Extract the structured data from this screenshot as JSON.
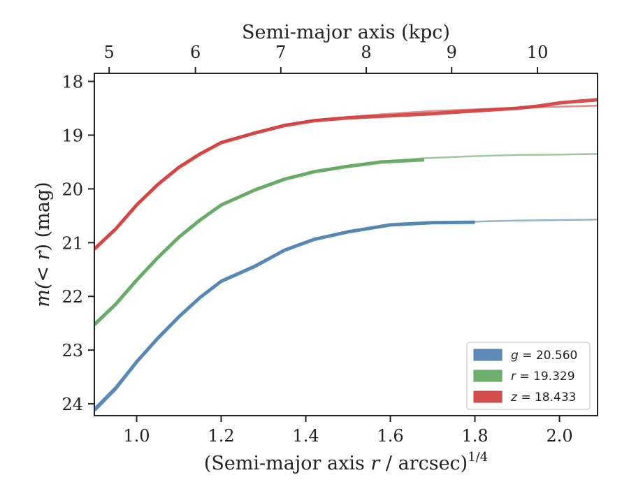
{
  "chart_data": {
    "type": "line",
    "xlabel_prefix": "(Semi-major axis ",
    "xlabel_var": "r",
    "xlabel_suffix": " / arcsec)",
    "xlabel_exp": "1/4",
    "ylabel_prefix": "m(",
    "ylabel_var": "< r",
    "ylabel_suffix": ") (mag)",
    "top_xlabel": "Semi-major axis (kpc)",
    "xlim": [
      0.9,
      2.09
    ],
    "ylim": [
      24.22,
      17.85
    ],
    "y_inverted": true,
    "xticks": [
      1.0,
      1.2,
      1.4,
      1.6,
      1.8,
      2.0
    ],
    "xtick_labels": [
      "1.0",
      "1.2",
      "1.4",
      "1.6",
      "1.8",
      "2.0"
    ],
    "yticks": [
      18,
      19,
      20,
      21,
      22,
      23,
      24
    ],
    "ytick_labels": [
      "18",
      "19",
      "20",
      "21",
      "22",
      "23",
      "24"
    ],
    "top_ticks": [
      {
        "label": "5",
        "x": 0.935
      },
      {
        "label": "6",
        "x": 1.139
      },
      {
        "label": "7",
        "x": 1.341
      },
      {
        "label": "8",
        "x": 1.543
      },
      {
        "label": "9",
        "x": 1.745
      },
      {
        "label": "10",
        "x": 1.948
      }
    ],
    "grid": false,
    "legend_position": "bottom-right",
    "series": [
      {
        "name": "g = 20.560",
        "legend_var": "g",
        "legend_value": "= 20.560",
        "color": "#4c7eae",
        "data": [
          [
            0.9,
            24.12
          ],
          [
            0.95,
            23.72
          ],
          [
            1.0,
            23.22
          ],
          [
            1.05,
            22.78
          ],
          [
            1.1,
            22.38
          ],
          [
            1.15,
            22.02
          ],
          [
            1.2,
            21.72
          ],
          [
            1.28,
            21.44
          ],
          [
            1.35,
            21.14
          ],
          [
            1.42,
            20.94
          ],
          [
            1.5,
            20.8
          ],
          [
            1.6,
            20.67
          ],
          [
            1.7,
            20.63
          ],
          [
            1.8,
            20.62
          ]
        ],
        "model": [
          [
            0.9,
            24.08
          ],
          [
            0.95,
            23.68
          ],
          [
            1.0,
            23.2
          ],
          [
            1.05,
            22.77
          ],
          [
            1.1,
            22.37
          ],
          [
            1.15,
            22.01
          ],
          [
            1.2,
            21.71
          ],
          [
            1.28,
            21.42
          ],
          [
            1.35,
            21.13
          ],
          [
            1.42,
            20.93
          ],
          [
            1.5,
            20.79
          ],
          [
            1.6,
            20.68
          ],
          [
            1.7,
            20.63
          ],
          [
            1.8,
            20.61
          ],
          [
            1.9,
            20.59
          ],
          [
            2.0,
            20.58
          ],
          [
            2.09,
            20.57
          ]
        ]
      },
      {
        "name": "r = 19.329",
        "legend_var": "r",
        "legend_value": "= 19.329",
        "color": "#5ea55e",
        "data": [
          [
            0.9,
            22.53
          ],
          [
            0.95,
            22.15
          ],
          [
            1.0,
            21.7
          ],
          [
            1.05,
            21.28
          ],
          [
            1.1,
            20.9
          ],
          [
            1.15,
            20.58
          ],
          [
            1.2,
            20.3
          ],
          [
            1.28,
            20.02
          ],
          [
            1.35,
            19.82
          ],
          [
            1.42,
            19.68
          ],
          [
            1.5,
            19.58
          ],
          [
            1.58,
            19.5
          ],
          [
            1.68,
            19.46
          ]
        ],
        "model": [
          [
            0.9,
            22.5
          ],
          [
            0.95,
            22.13
          ],
          [
            1.0,
            21.68
          ],
          [
            1.05,
            21.27
          ],
          [
            1.1,
            20.89
          ],
          [
            1.15,
            20.57
          ],
          [
            1.2,
            20.29
          ],
          [
            1.28,
            20.01
          ],
          [
            1.35,
            19.81
          ],
          [
            1.42,
            19.67
          ],
          [
            1.5,
            19.57
          ],
          [
            1.58,
            19.49
          ],
          [
            1.68,
            19.43
          ],
          [
            1.8,
            19.39
          ],
          [
            1.9,
            19.37
          ],
          [
            2.0,
            19.36
          ],
          [
            2.09,
            19.35
          ]
        ]
      },
      {
        "name": "z = 18.433",
        "legend_var": "z",
        "legend_value": "= 18.433",
        "color": "#cf3b3b",
        "data": [
          [
            0.9,
            21.12
          ],
          [
            0.95,
            20.75
          ],
          [
            1.0,
            20.3
          ],
          [
            1.05,
            19.92
          ],
          [
            1.1,
            19.6
          ],
          [
            1.15,
            19.35
          ],
          [
            1.2,
            19.14
          ],
          [
            1.28,
            18.96
          ],
          [
            1.35,
            18.82
          ],
          [
            1.42,
            18.73
          ],
          [
            1.5,
            18.68
          ],
          [
            1.6,
            18.64
          ],
          [
            1.7,
            18.6
          ],
          [
            1.8,
            18.55
          ],
          [
            1.9,
            18.5
          ],
          [
            1.95,
            18.46
          ],
          [
            2.0,
            18.4
          ],
          [
            2.09,
            18.34
          ]
        ],
        "model": [
          [
            0.9,
            21.1
          ],
          [
            0.95,
            20.74
          ],
          [
            1.0,
            20.29
          ],
          [
            1.05,
            19.91
          ],
          [
            1.1,
            19.59
          ],
          [
            1.15,
            19.34
          ],
          [
            1.2,
            19.13
          ],
          [
            1.28,
            18.95
          ],
          [
            1.35,
            18.81
          ],
          [
            1.42,
            18.72
          ],
          [
            1.5,
            18.66
          ],
          [
            1.6,
            18.6
          ],
          [
            1.7,
            18.55
          ],
          [
            1.8,
            18.52
          ],
          [
            1.9,
            18.49
          ],
          [
            2.0,
            18.47
          ],
          [
            2.09,
            18.45
          ]
        ]
      }
    ]
  }
}
